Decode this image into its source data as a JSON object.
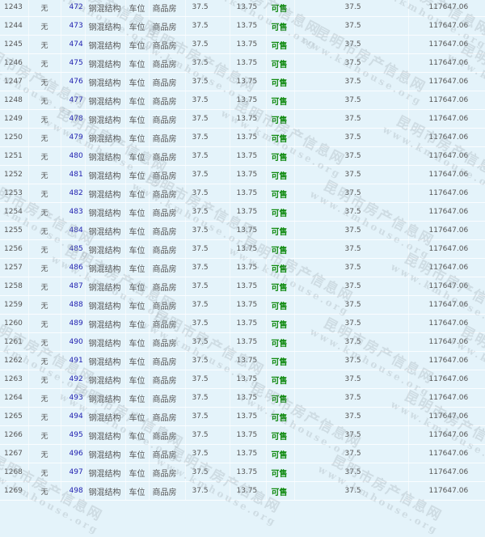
{
  "table": {
    "rows": [
      [
        "1243",
        "无",
        "472",
        "钢混结构",
        "车位",
        "商品房",
        "37.5",
        "13.75",
        "可售",
        "37.5",
        "117647.06"
      ],
      [
        "1244",
        "无",
        "473",
        "钢混结构",
        "车位",
        "商品房",
        "37.5",
        "13.75",
        "可售",
        "37.5",
        "117647.06"
      ],
      [
        "1245",
        "无",
        "474",
        "钢混结构",
        "车位",
        "商品房",
        "37.5",
        "13.75",
        "可售",
        "37.5",
        "117647.06"
      ],
      [
        "1246",
        "无",
        "475",
        "钢混结构",
        "车位",
        "商品房",
        "37.5",
        "13.75",
        "可售",
        "37.5",
        "117647.06"
      ],
      [
        "1247",
        "无",
        "476",
        "钢混结构",
        "车位",
        "商品房",
        "37.5",
        "13.75",
        "可售",
        "37.5",
        "117647.06"
      ],
      [
        "1248",
        "无",
        "477",
        "钢混结构",
        "车位",
        "商品房",
        "37.5",
        "13.75",
        "可售",
        "37.5",
        "117647.06"
      ],
      [
        "1249",
        "无",
        "478",
        "钢混结构",
        "车位",
        "商品房",
        "37.5",
        "13.75",
        "可售",
        "37.5",
        "117647.06"
      ],
      [
        "1250",
        "无",
        "479",
        "钢混结构",
        "车位",
        "商品房",
        "37.5",
        "13.75",
        "可售",
        "37.5",
        "117647.06"
      ],
      [
        "1251",
        "无",
        "480",
        "钢混结构",
        "车位",
        "商品房",
        "37.5",
        "13.75",
        "可售",
        "37.5",
        "117647.06"
      ],
      [
        "1252",
        "无",
        "481",
        "钢混结构",
        "车位",
        "商品房",
        "37.5",
        "13.75",
        "可售",
        "37.5",
        "117647.06"
      ],
      [
        "1253",
        "无",
        "482",
        "钢混结构",
        "车位",
        "商品房",
        "37.5",
        "13.75",
        "可售",
        "37.5",
        "117647.06"
      ],
      [
        "1254",
        "无",
        "483",
        "钢混结构",
        "车位",
        "商品房",
        "37.5",
        "13.75",
        "可售",
        "37.5",
        "117647.06"
      ],
      [
        "1255",
        "无",
        "484",
        "钢混结构",
        "车位",
        "商品房",
        "37.5",
        "13.75",
        "可售",
        "37.5",
        "117647.06"
      ],
      [
        "1256",
        "无",
        "485",
        "钢混结构",
        "车位",
        "商品房",
        "37.5",
        "13.75",
        "可售",
        "37.5",
        "117647.06"
      ],
      [
        "1257",
        "无",
        "486",
        "钢混结构",
        "车位",
        "商品房",
        "37.5",
        "13.75",
        "可售",
        "37.5",
        "117647.06"
      ],
      [
        "1258",
        "无",
        "487",
        "钢混结构",
        "车位",
        "商品房",
        "37.5",
        "13.75",
        "可售",
        "37.5",
        "117647.06"
      ],
      [
        "1259",
        "无",
        "488",
        "钢混结构",
        "车位",
        "商品房",
        "37.5",
        "13.75",
        "可售",
        "37.5",
        "117647.06"
      ],
      [
        "1260",
        "无",
        "489",
        "钢混结构",
        "车位",
        "商品房",
        "37.5",
        "13.75",
        "可售",
        "37.5",
        "117647.06"
      ],
      [
        "1261",
        "无",
        "490",
        "钢混结构",
        "车位",
        "商品房",
        "37.5",
        "13.75",
        "可售",
        "37.5",
        "117647.06"
      ],
      [
        "1262",
        "无",
        "491",
        "钢混结构",
        "车位",
        "商品房",
        "37.5",
        "13.75",
        "可售",
        "37.5",
        "117647.06"
      ],
      [
        "1263",
        "无",
        "492",
        "钢混结构",
        "车位",
        "商品房",
        "37.5",
        "13.75",
        "可售",
        "37.5",
        "117647.06"
      ],
      [
        "1264",
        "无",
        "493",
        "钢混结构",
        "车位",
        "商品房",
        "37.5",
        "13.75",
        "可售",
        "37.5",
        "117647.06"
      ],
      [
        "1265",
        "无",
        "494",
        "钢混结构",
        "车位",
        "商品房",
        "37.5",
        "13.75",
        "可售",
        "37.5",
        "117647.06"
      ],
      [
        "1266",
        "无",
        "495",
        "钢混结构",
        "车位",
        "商品房",
        "37.5",
        "13.75",
        "可售",
        "37.5",
        "117647.06"
      ],
      [
        "1267",
        "无",
        "496",
        "钢混结构",
        "车位",
        "商品房",
        "37.5",
        "13.75",
        "可售",
        "37.5",
        "117647.06"
      ],
      [
        "1268",
        "无",
        "497",
        "钢混结构",
        "车位",
        "商品房",
        "37.5",
        "13.75",
        "可售",
        "37.5",
        "117647.06"
      ],
      [
        "1269",
        "无",
        "498",
        "钢混结构",
        "车位",
        "商品房",
        "37.5",
        "13.75",
        "可售",
        "37.5",
        "117647.06"
      ]
    ]
  },
  "colors": {
    "background": "#e4f3fa",
    "link": "#2020b0",
    "available": "#108a10",
    "text": "#555555"
  },
  "watermark": {
    "cn": "昆明市房产信息网",
    "en": "www.kmhouse.org"
  }
}
